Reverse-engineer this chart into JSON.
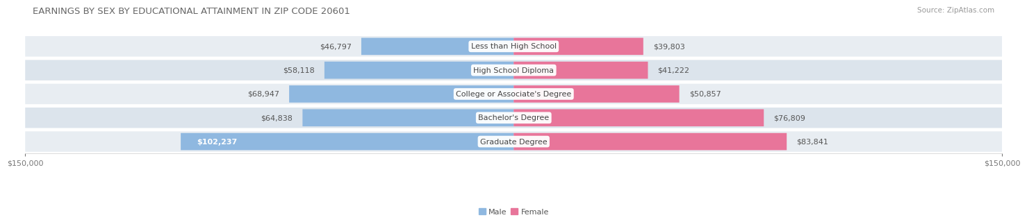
{
  "title": "EARNINGS BY SEX BY EDUCATIONAL ATTAINMENT IN ZIP CODE 20601",
  "source": "Source: ZipAtlas.com",
  "categories": [
    "Less than High School",
    "High School Diploma",
    "College or Associate's Degree",
    "Bachelor's Degree",
    "Graduate Degree"
  ],
  "male_values": [
    46797,
    58118,
    68947,
    64838,
    102237
  ],
  "female_values": [
    39803,
    41222,
    50857,
    76809,
    83841
  ],
  "male_color": "#8fb8e0",
  "female_color": "#e8759a",
  "row_bg_color_odd": "#e8edf2",
  "row_bg_color_even": "#dce4ec",
  "max_val": 150000,
  "background_color": "#ffffff",
  "title_fontsize": 9.5,
  "source_fontsize": 7.5,
  "label_fontsize": 8,
  "axis_fontsize": 8,
  "cat_fontsize": 8
}
